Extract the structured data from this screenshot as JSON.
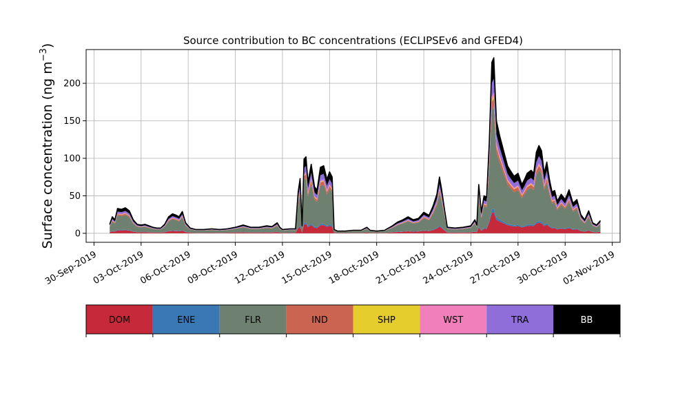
{
  "chart_data": {
    "type": "area",
    "title": "Source contribution to BC concentrations (ECLIPSEv6 and GFED4)",
    "ylabel": "Surface concentration (ng m",
    "ylabel_sup": "−3",
    "ylabel_close": ")",
    "xlabel": "",
    "ylim": [
      -12,
      245
    ],
    "xlim": [
      "2019-09-29T12:00",
      "2019-11-02T12:00"
    ],
    "yticks": [
      0,
      50,
      100,
      150,
      200
    ],
    "ytick_labels": [
      "0",
      "50",
      "100",
      "150",
      "200"
    ],
    "xticks": [
      "2019-09-30",
      "2019-10-03",
      "2019-10-06",
      "2019-10-09",
      "2019-10-12",
      "2019-10-15",
      "2019-10-18",
      "2019-10-21",
      "2019-10-24",
      "2019-10-27",
      "2019-10-30",
      "2019-11-02"
    ],
    "xtick_labels": [
      "30-Sep-2019",
      "03-Oct-2019",
      "06-Oct-2019",
      "09-Oct-2019",
      "12-Oct-2019",
      "15-Oct-2019",
      "18-Oct-2019",
      "21-Oct-2019",
      "24-Oct-2019",
      "27-Oct-2019",
      "30-Oct-2019",
      "02-Nov-2019"
    ],
    "grid": true,
    "stacked": true,
    "legend_placement": "below",
    "total_line_color": "#000000",
    "total": [
      [
        "2019-10-01T00:00",
        12
      ],
      [
        "2019-10-01T04:00",
        22
      ],
      [
        "2019-10-01T08:00",
        18
      ],
      [
        "2019-10-01T12:00",
        33
      ],
      [
        "2019-10-01T18:00",
        32
      ],
      [
        "2019-10-02T00:00",
        34
      ],
      [
        "2019-10-02T06:00",
        30
      ],
      [
        "2019-10-02T12:00",
        18
      ],
      [
        "2019-10-02T18:00",
        12
      ],
      [
        "2019-10-03T00:00",
        11
      ],
      [
        "2019-10-03T06:00",
        12
      ],
      [
        "2019-10-03T12:00",
        10
      ],
      [
        "2019-10-03T18:00",
        8
      ],
      [
        "2019-10-04T00:00",
        7
      ],
      [
        "2019-10-04T06:00",
        7
      ],
      [
        "2019-10-04T12:00",
        12
      ],
      [
        "2019-10-04T18:00",
        22
      ],
      [
        "2019-10-05T00:00",
        26
      ],
      [
        "2019-10-05T06:00",
        24
      ],
      [
        "2019-10-05T10:00",
        22
      ],
      [
        "2019-10-05T15:00",
        29
      ],
      [
        "2019-10-05T20:00",
        14
      ],
      [
        "2019-10-06T03:00",
        7
      ],
      [
        "2019-10-06T12:00",
        5
      ],
      [
        "2019-10-07T00:00",
        5
      ],
      [
        "2019-10-07T12:00",
        6
      ],
      [
        "2019-10-08T00:00",
        5
      ],
      [
        "2019-10-08T12:00",
        6
      ],
      [
        "2019-10-09T00:00",
        8
      ],
      [
        "2019-10-09T12:00",
        11
      ],
      [
        "2019-10-10T00:00",
        8
      ],
      [
        "2019-10-10T12:00",
        8
      ],
      [
        "2019-10-11T00:00",
        10
      ],
      [
        "2019-10-11T08:00",
        9
      ],
      [
        "2019-10-11T16:00",
        14
      ],
      [
        "2019-10-11T20:00",
        8
      ],
      [
        "2019-10-12T00:00",
        5
      ],
      [
        "2019-10-12T12:00",
        6
      ],
      [
        "2019-10-12T20:00",
        6
      ],
      [
        "2019-10-13T00:00",
        55
      ],
      [
        "2019-10-13T03:00",
        73
      ],
      [
        "2019-10-13T06:00",
        10
      ],
      [
        "2019-10-13T09:00",
        99
      ],
      [
        "2019-10-13T12:00",
        102
      ],
      [
        "2019-10-13T15:00",
        68
      ],
      [
        "2019-10-13T20:00",
        92
      ],
      [
        "2019-10-14T01:00",
        62
      ],
      [
        "2019-10-14T05:00",
        58
      ],
      [
        "2019-10-14T10:00",
        88
      ],
      [
        "2019-10-14T15:00",
        90
      ],
      [
        "2019-10-14T20:00",
        72
      ],
      [
        "2019-10-15T00:00",
        82
      ],
      [
        "2019-10-15T04:00",
        75
      ],
      [
        "2019-10-15T07:00",
        5
      ],
      [
        "2019-10-15T12:00",
        3
      ],
      [
        "2019-10-16T00:00",
        3
      ],
      [
        "2019-10-16T12:00",
        4
      ],
      [
        "2019-10-17T00:00",
        4
      ],
      [
        "2019-10-17T09:00",
        8
      ],
      [
        "2019-10-17T14:00",
        4
      ],
      [
        "2019-10-18T00:00",
        3
      ],
      [
        "2019-10-18T12:00",
        4
      ],
      [
        "2019-10-19T00:00",
        10
      ],
      [
        "2019-10-19T08:00",
        15
      ],
      [
        "2019-10-19T16:00",
        18
      ],
      [
        "2019-10-20T00:00",
        22
      ],
      [
        "2019-10-20T08:00",
        18
      ],
      [
        "2019-10-20T16:00",
        20
      ],
      [
        "2019-10-21T00:00",
        28
      ],
      [
        "2019-10-21T08:00",
        24
      ],
      [
        "2019-10-21T14:00",
        36
      ],
      [
        "2019-10-21T20:00",
        52
      ],
      [
        "2019-10-22T00:00",
        75
      ],
      [
        "2019-10-22T03:00",
        60
      ],
      [
        "2019-10-22T08:00",
        30
      ],
      [
        "2019-10-22T12:00",
        8
      ],
      [
        "2019-10-23T00:00",
        7
      ],
      [
        "2019-10-23T12:00",
        8
      ],
      [
        "2019-10-24T00:00",
        10
      ],
      [
        "2019-10-24T06:00",
        18
      ],
      [
        "2019-10-24T09:00",
        11
      ],
      [
        "2019-10-24T12:00",
        65
      ],
      [
        "2019-10-24T16:00",
        28
      ],
      [
        "2019-10-24T20:00",
        50
      ],
      [
        "2019-10-25T00:00",
        48
      ],
      [
        "2019-10-25T04:00",
        120
      ],
      [
        "2019-10-25T08:00",
        228
      ],
      [
        "2019-10-25T11:00",
        234
      ],
      [
        "2019-10-25T15:00",
        150
      ],
      [
        "2019-10-25T20:00",
        130
      ],
      [
        "2019-10-26T02:00",
        110
      ],
      [
        "2019-10-26T08:00",
        90
      ],
      [
        "2019-10-26T12:00",
        84
      ],
      [
        "2019-10-26T18:00",
        76
      ],
      [
        "2019-10-27T00:00",
        80
      ],
      [
        "2019-10-27T06:00",
        65
      ],
      [
        "2019-10-27T10:00",
        72
      ],
      [
        "2019-10-27T14:00",
        80
      ],
      [
        "2019-10-27T20:00",
        84
      ],
      [
        "2019-10-28T00:00",
        80
      ],
      [
        "2019-10-28T04:00",
        108
      ],
      [
        "2019-10-28T08:00",
        117
      ],
      [
        "2019-10-28T12:00",
        110
      ],
      [
        "2019-10-28T16:00",
        80
      ],
      [
        "2019-10-28T20:00",
        95
      ],
      [
        "2019-10-29T00:00",
        72
      ],
      [
        "2019-10-29T04:00",
        55
      ],
      [
        "2019-10-29T08:00",
        57
      ],
      [
        "2019-10-29T12:00",
        43
      ],
      [
        "2019-10-29T18:00",
        52
      ],
      [
        "2019-10-30T00:00",
        45
      ],
      [
        "2019-10-30T06:00",
        58
      ],
      [
        "2019-10-30T12:00",
        40
      ],
      [
        "2019-10-30T18:00",
        45
      ],
      [
        "2019-10-31T00:00",
        25
      ],
      [
        "2019-10-31T06:00",
        18
      ],
      [
        "2019-10-31T12:00",
        30
      ],
      [
        "2019-10-31T18:00",
        14
      ],
      [
        "2019-11-01T00:00",
        11
      ],
      [
        "2019-11-01T06:00",
        17
      ]
    ],
    "series": [
      {
        "name": "DOM",
        "color": "#c62a3a",
        "share": 0.12
      },
      {
        "name": "ENE",
        "color": "#3a78b4",
        "share": 0.02
      },
      {
        "name": "FLR",
        "color": "#6e8170",
        "share": 0.58
      },
      {
        "name": "IND",
        "color": "#cb6552",
        "share": 0.05
      },
      {
        "name": "SHP",
        "color": "#e5cd2d",
        "share": 0.01
      },
      {
        "name": "WST",
        "color": "#f07fbb",
        "share": 0.02
      },
      {
        "name": "TRA",
        "color": "#8f6ed9",
        "share": 0.08
      },
      {
        "name": "BB",
        "color": "#000000",
        "share": 0.12
      }
    ],
    "legend_text_colors": [
      "#000000",
      "#000000",
      "#000000",
      "#000000",
      "#000000",
      "#000000",
      "#000000",
      "#ffffff"
    ]
  }
}
